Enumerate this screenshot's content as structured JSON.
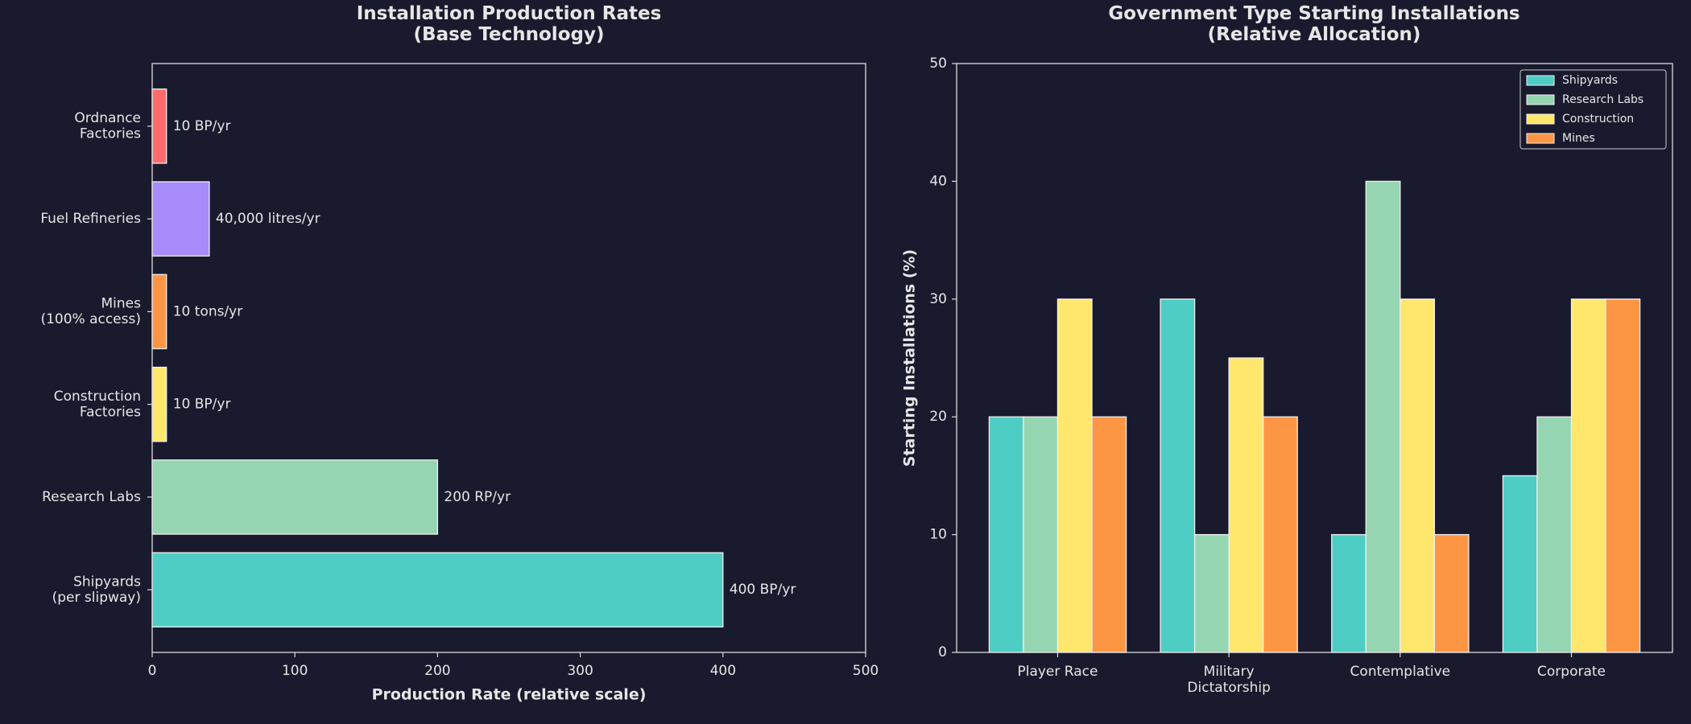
{
  "chart_data": [
    {
      "type": "hbar",
      "title": "Installation Production Rates\n(Base Technology)",
      "x_label": "Production Rate (relative scale)",
      "categories": [
        "Ordnance\nFactories",
        "Fuel Refineries",
        "Mines\n(100% access)",
        "Construction\nFactories",
        "Research Labs",
        "Shipyards\n(per slipway)"
      ],
      "values": [
        10,
        40,
        10,
        10,
        200,
        400
      ],
      "value_labels": [
        "10 BP/yr",
        "40,000 litres/yr",
        "10 tons/yr",
        "10 BP/yr",
        "200 RP/yr",
        "400 BP/yr"
      ],
      "colors": [
        "#ff6b6b",
        "#a78bfa",
        "#fd9644",
        "#ffe66d",
        "#95d5b2",
        "#4ecdc4"
      ],
      "xlim": [
        0,
        500
      ],
      "xticks": [
        0,
        100,
        200,
        300,
        400,
        500
      ]
    },
    {
      "type": "grouped_bar",
      "title": "Government Type Starting Installations\n(Relative Allocation)",
      "y_label": "Starting Installations (%)",
      "categories": [
        "Player Race",
        "Military\nDictatorship",
        "Contemplative",
        "Corporate"
      ],
      "series": [
        {
          "name": "Shipyards",
          "color": "#4ecdc4",
          "values": [
            20,
            30,
            10,
            15
          ]
        },
        {
          "name": "Research Labs",
          "color": "#95d5b2",
          "values": [
            20,
            10,
            40,
            20
          ]
        },
        {
          "name": "Construction",
          "color": "#ffe66d",
          "values": [
            30,
            25,
            30,
            30
          ]
        },
        {
          "name": "Mines",
          "color": "#fd9644",
          "values": [
            20,
            20,
            10,
            30
          ]
        }
      ],
      "ylim": [
        0,
        50
      ],
      "yticks": [
        0,
        10,
        20,
        30,
        40,
        50
      ],
      "legend": "upper right"
    }
  ]
}
